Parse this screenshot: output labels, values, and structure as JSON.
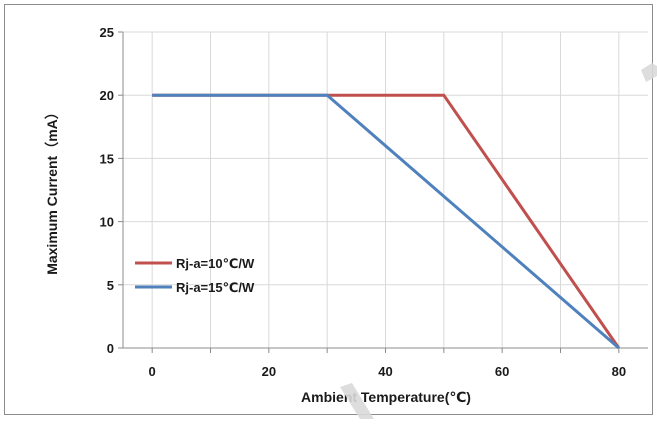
{
  "chart_data": {
    "type": "line",
    "xlabel": "Ambient Temperature(℃)",
    "ylabel": "Maximum Current（mA）",
    "xlim": [
      -5,
      85
    ],
    "ylim": [
      0,
      25
    ],
    "x_ticks": [
      0,
      20,
      40,
      60,
      80
    ],
    "y_ticks": [
      0,
      5,
      10,
      15,
      20,
      25
    ],
    "grid": true,
    "legend_position": "left",
    "series": [
      {
        "name": "Rj-a=10℃/W",
        "color": "#c0504d",
        "points": [
          [
            0,
            20
          ],
          [
            50,
            20
          ],
          [
            80,
            0
          ]
        ]
      },
      {
        "name": "Rj-a=15℃/W",
        "color": "#4f81bd",
        "points": [
          [
            0,
            20
          ],
          [
            30,
            20
          ],
          [
            80,
            0
          ]
        ]
      }
    ]
  }
}
